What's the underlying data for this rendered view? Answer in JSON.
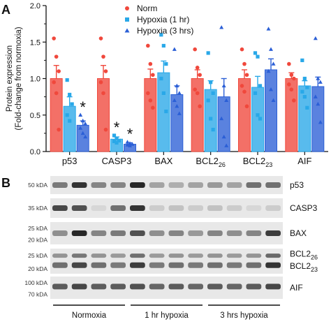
{
  "panel_a": {
    "letter": "A",
    "chart_data": {
      "type": "bar",
      "categories": [
        "p53",
        "CASP3",
        "BAX",
        "BCL2_26",
        "BCL2_23",
        "AIF"
      ],
      "category_labels": [
        {
          "base": "p53",
          "sub": ""
        },
        {
          "base": "CASP3",
          "sub": ""
        },
        {
          "base": "BAX",
          "sub": ""
        },
        {
          "base": "BCL2",
          "sub": "26"
        },
        {
          "base": "BCL2",
          "sub": "23"
        },
        {
          "base": "AIF",
          "sub": ""
        }
      ],
      "ylabel_lines": [
        "Protein expression",
        "(Fold-change from normoxia)"
      ],
      "ylim": [
        0,
        2.0
      ],
      "yticks": [
        "0.0",
        "0.5",
        "1.0",
        "1.5",
        "2.0"
      ],
      "legend_position": "top-center",
      "series": [
        {
          "name": "Norm",
          "color": "#f0483c",
          "marker": "circle",
          "values": [
            1.0,
            1.0,
            1.0,
            1.0,
            1.0,
            1.0
          ],
          "errors": [
            0.18,
            0.18,
            0.13,
            0.12,
            0.12,
            0.08
          ],
          "points": [
            [
              1.55,
              1.3,
              1.1,
              0.95,
              0.8,
              0.3
            ],
            [
              1.55,
              1.3,
              1.1,
              0.95,
              0.8,
              0.3
            ],
            [
              1.45,
              1.2,
              1.05,
              0.8,
              0.7,
              0.6
            ],
            [
              1.4,
              1.15,
              1.05,
              0.85,
              0.8,
              0.62
            ],
            [
              1.4,
              1.2,
              1.05,
              0.9,
              0.82,
              0.62
            ],
            [
              1.2,
              1.05,
              1.0,
              0.92,
              0.85,
              0.7
            ]
          ]
        },
        {
          "name": "Hypoxia (1 hr)",
          "color": "#29a8e8",
          "marker": "square",
          "values": [
            0.62,
            0.17,
            1.08,
            0.85,
            0.88,
            0.9
          ],
          "errors": [
            0.13,
            0.03,
            0.16,
            0.12,
            0.15,
            0.07
          ],
          "points": [
            [
              0.98,
              0.78,
              0.65,
              0.5,
              0.42
            ],
            [
              0.22,
              0.18,
              0.15,
              0.14,
              0.12
            ],
            [
              1.6,
              1.45,
              1.2,
              1.0,
              0.8,
              0.55
            ],
            [
              1.35,
              0.95,
              0.8,
              0.7,
              0.45,
              0.3
            ],
            [
              1.35,
              1.3,
              0.9,
              0.8,
              0.5,
              0.45
            ],
            [
              1.25,
              1.0,
              0.88,
              0.82,
              0.75,
              0.6
            ]
          ]
        },
        {
          "name": "Hypoxia (3 hrs)",
          "color": "#2b5fd6",
          "marker": "triangle",
          "values": [
            0.36,
            0.1,
            0.78,
            0.75,
            1.12,
            0.89
          ],
          "errors": [
            0.06,
            0.02,
            0.12,
            0.25,
            0.15,
            0.13
          ],
          "points": [
            [
              0.5,
              0.42,
              0.38,
              0.32,
              0.25,
              0.2
            ],
            [
              0.13,
              0.11,
              0.1,
              0.09,
              0.08
            ],
            [
              1.4,
              0.9,
              0.8,
              0.7,
              0.62,
              0.52
            ],
            [
              1.7,
              0.9,
              0.7,
              0.45,
              0.2,
              0.08
            ],
            [
              1.68,
              1.4,
              1.2,
              1.1,
              0.85,
              0.7
            ],
            [
              1.55,
              1.0,
              0.95,
              0.75,
              0.65,
              0.4
            ]
          ]
        }
      ],
      "significance": [
        {
          "category": "p53",
          "series": "Hypoxia (3 hrs)",
          "label": "*"
        },
        {
          "category": "CASP3",
          "series": "Hypoxia (1 hr)",
          "label": "*"
        },
        {
          "category": "CASP3",
          "series": "Hypoxia (3 hrs)",
          "label": "*"
        }
      ]
    }
  },
  "panel_b": {
    "letter": "B",
    "blots": [
      {
        "protein": "p53",
        "protein_sub": "",
        "markers": [
          "50 kDA"
        ],
        "lanes": [
          0.55,
          0.9,
          0.5,
          0.5,
          0.95,
          0.35,
          0.3,
          0.35,
          0.4,
          0.35,
          0.6,
          0.6
        ]
      },
      {
        "protein": "CASP3",
        "protein_sub": "",
        "markers": [
          "35 kDA"
        ],
        "lanes": [
          0.8,
          0.75,
          0.1,
          0.6,
          0.9,
          0.15,
          0.2,
          0.15,
          0.2,
          0.15,
          0.1,
          0.15
        ]
      },
      {
        "protein": "BAX",
        "protein_sub": "",
        "markers": [
          "25 kDA",
          "20 kDA"
        ],
        "lanes": [
          0.45,
          0.95,
          0.5,
          0.55,
          0.75,
          0.45,
          0.5,
          0.4,
          0.5,
          0.45,
          0.5,
          0.85
        ]
      },
      {
        "protein": "BCL2",
        "protein_sub": "26",
        "protein2": "BCL2",
        "protein2_sub": "23",
        "markers": [
          "25 kDA",
          "20 kDA"
        ],
        "lanes": [
          0.6,
          0.8,
          0.6,
          0.55,
          0.85,
          0.55,
          0.6,
          0.55,
          0.6,
          0.55,
          0.6,
          0.9
        ]
      },
      {
        "protein": "AIF",
        "protein_sub": "",
        "markers": [
          "100 kDA",
          "70 kDA"
        ],
        "lanes": [
          0.7,
          0.8,
          0.7,
          0.7,
          0.75,
          0.65,
          0.7,
          0.65,
          0.7,
          0.65,
          0.7,
          0.8
        ]
      }
    ],
    "groups": [
      "Normoxia",
      "1 hr hypoxia",
      "3 hrs hypoxia"
    ]
  }
}
